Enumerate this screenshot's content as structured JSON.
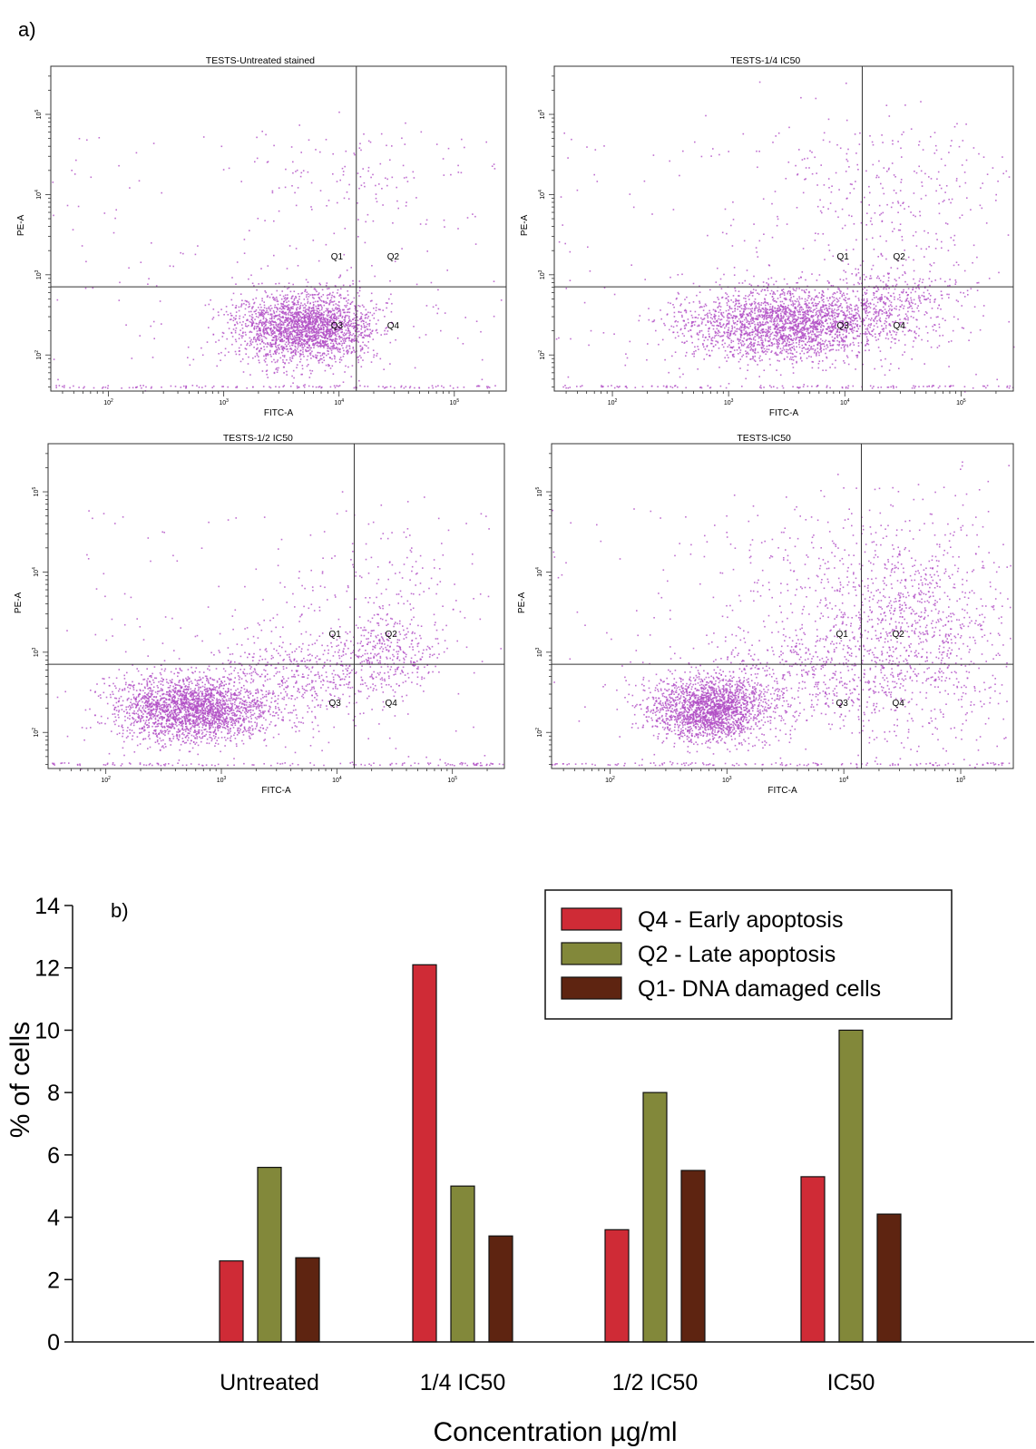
{
  "panel_a": {
    "label": "a)",
    "plots": [
      {
        "title": "TESTS-Untreated stained",
        "xlabel": "FITC-A",
        "ylabel": "PE-A",
        "quadrant_labels": [
          "Q1",
          "Q2",
          "Q3",
          "Q4"
        ],
        "x_gate_log10": 4.15,
        "y_gate_log10": 2.85,
        "clusters": [
          {
            "cx": 3.7,
            "cy": 2.35,
            "sx": 0.3,
            "sy": 0.22,
            "n": 2300
          },
          {
            "cx": 4.15,
            "cy": 4.2,
            "sx": 0.5,
            "sy": 0.35,
            "n": 110
          }
        ]
      },
      {
        "title": "TESTS-1/4 IC50",
        "xlabel": "FITC-A",
        "ylabel": "PE-A",
        "quadrant_labels": [
          "Q1",
          "Q2",
          "Q3",
          "Q4"
        ],
        "x_gate_log10": 4.15,
        "y_gate_log10": 2.85,
        "clusters": [
          {
            "cx": 3.5,
            "cy": 2.4,
            "sx": 0.45,
            "sy": 0.22,
            "n": 2400
          },
          {
            "cx": 4.45,
            "cy": 2.75,
            "sx": 0.3,
            "sy": 0.25,
            "n": 350
          },
          {
            "cx": 4.4,
            "cy": 4.0,
            "sx": 0.55,
            "sy": 0.5,
            "n": 260
          }
        ]
      },
      {
        "title": "TESTS-1/2 IC50",
        "xlabel": "FITC-A",
        "ylabel": "PE-A",
        "quadrant_labels": [
          "Q1",
          "Q2",
          "Q3",
          "Q4"
        ],
        "x_gate_log10": 4.15,
        "y_gate_log10": 2.85,
        "clusters": [
          {
            "cx": 2.75,
            "cy": 2.3,
            "sx": 0.32,
            "sy": 0.2,
            "n": 2300
          },
          {
            "cx": 3.6,
            "cy": 2.7,
            "sx": 0.4,
            "sy": 0.3,
            "n": 500
          },
          {
            "cx": 4.45,
            "cy": 3.0,
            "sx": 0.22,
            "sy": 0.25,
            "n": 300
          },
          {
            "cx": 4.3,
            "cy": 3.8,
            "sx": 0.4,
            "sy": 0.45,
            "n": 150
          }
        ]
      },
      {
        "title": "TESTS-IC50",
        "xlabel": "FITC-A",
        "ylabel": "PE-A",
        "quadrant_labels": [
          "Q1",
          "Q2",
          "Q3",
          "Q4"
        ],
        "x_gate_log10": 4.15,
        "y_gate_log10": 2.85,
        "clusters": [
          {
            "cx": 2.85,
            "cy": 2.3,
            "sx": 0.25,
            "sy": 0.2,
            "n": 2000
          },
          {
            "cx": 3.7,
            "cy": 2.75,
            "sx": 0.45,
            "sy": 0.3,
            "n": 500
          },
          {
            "cx": 4.6,
            "cy": 3.3,
            "sx": 0.4,
            "sy": 0.7,
            "n": 950
          },
          {
            "cx": 3.8,
            "cy": 3.9,
            "sx": 0.5,
            "sy": 0.45,
            "n": 200
          }
        ]
      }
    ]
  },
  "chart_data": {
    "type": "bar",
    "label": "b)",
    "categories": [
      "Untreated",
      "1/4 IC50",
      "1/2 IC50",
      "IC50"
    ],
    "series": [
      {
        "name": "Q4 - Early apoptosis",
        "values": [
          2.6,
          12.1,
          3.6,
          5.3
        ],
        "color": "#cf2b36"
      },
      {
        "name": "Q2 - Late apoptosis",
        "values": [
          5.6,
          5.0,
          8.0,
          10.0
        ],
        "color": "#82883a"
      },
      {
        "name": "Q1-  DNA damaged cells",
        "values": [
          2.7,
          3.4,
          5.5,
          4.1
        ],
        "color": "#5e2411"
      }
    ],
    "xlabel": "Concentration µg/ml",
    "ylabel": "% of cells",
    "ylim": [
      0,
      14
    ],
    "yticks": [
      "0",
      "2",
      "4",
      "6",
      "8",
      "10",
      "12",
      "14"
    ],
    "legend_position": "top-right",
    "grid": false
  }
}
